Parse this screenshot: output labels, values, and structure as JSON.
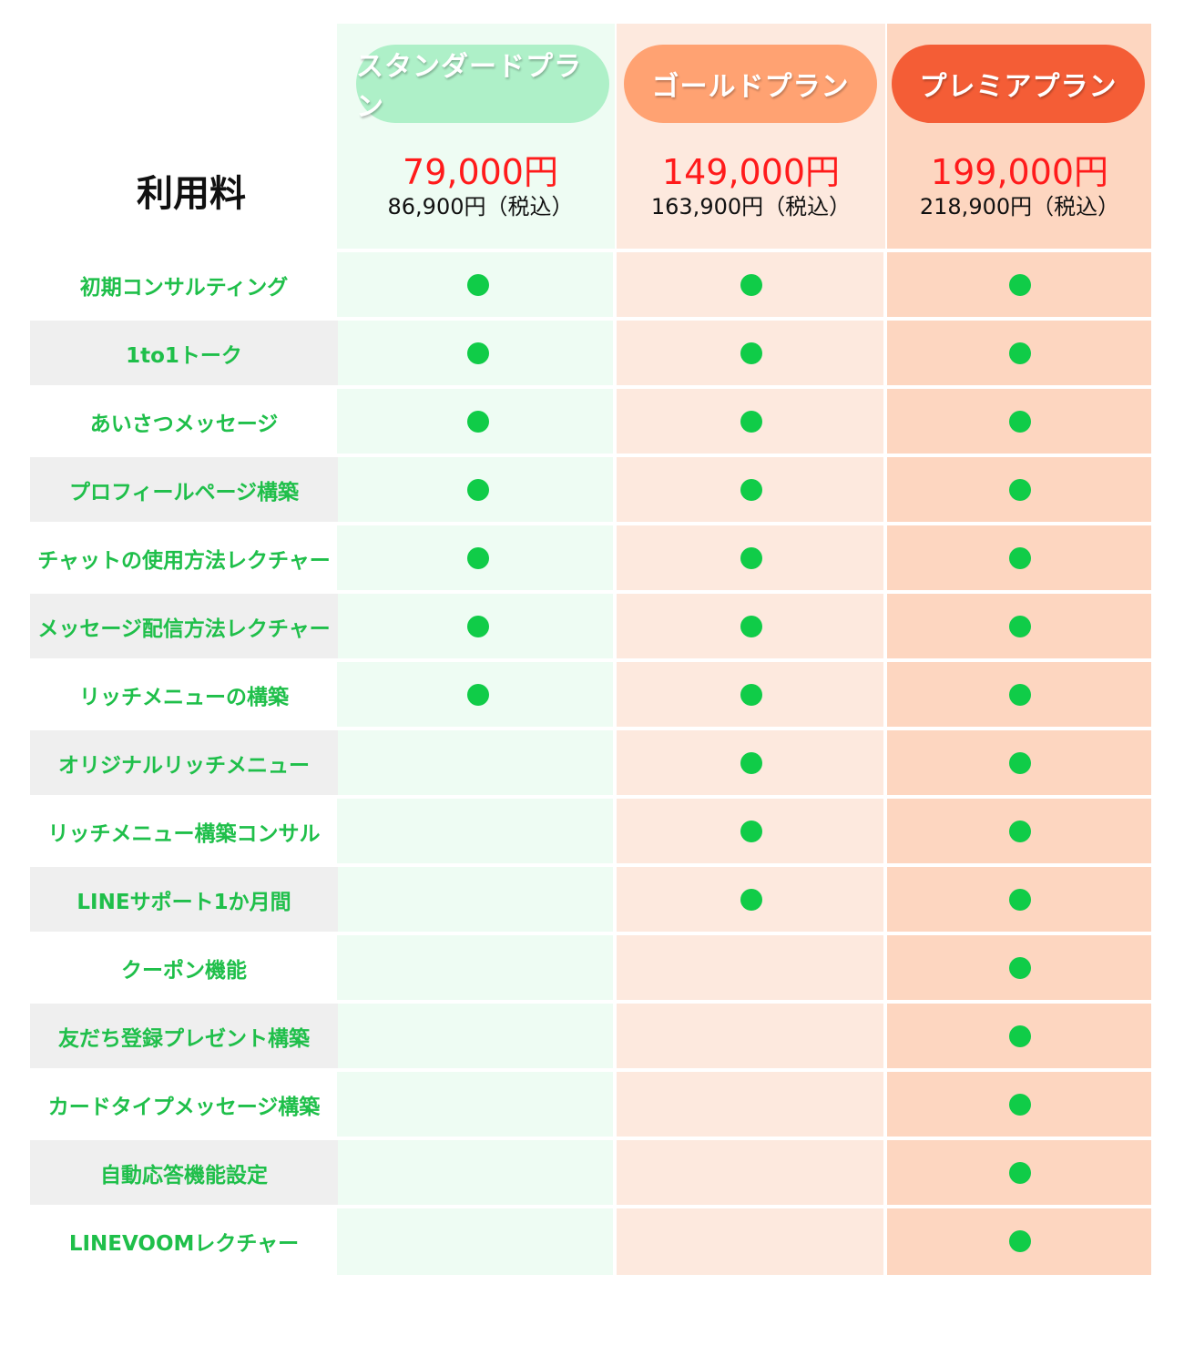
{
  "fee_label": "利用料",
  "plans": [
    {
      "name": "スタンダードプラン",
      "price": "79,000円",
      "price_tax": "86,900円（税込）",
      "color": "#aef0c8"
    },
    {
      "name": "ゴールドプラン",
      "price": "149,000円",
      "price_tax": "163,900円（税込）",
      "color": "#ffa272"
    },
    {
      "name": "プレミアプラン",
      "price": "199,000円",
      "price_tax": "218,900円（税込）",
      "color": "#f45d36"
    }
  ],
  "features": [
    {
      "label": "初期コンサルティング",
      "included": [
        true,
        true,
        true
      ]
    },
    {
      "label": "1to1トーク",
      "included": [
        true,
        true,
        true
      ]
    },
    {
      "label": "あいさつメッセージ",
      "included": [
        true,
        true,
        true
      ]
    },
    {
      "label": "プロフィールページ構築",
      "included": [
        true,
        true,
        true
      ]
    },
    {
      "label": "チャットの使用方法レクチャー",
      "included": [
        true,
        true,
        true
      ]
    },
    {
      "label": "メッセージ配信方法レクチャー",
      "included": [
        true,
        true,
        true
      ]
    },
    {
      "label": "リッチメニューの構築",
      "included": [
        true,
        true,
        true
      ]
    },
    {
      "label": "オリジナルリッチメニュー",
      "included": [
        false,
        true,
        true
      ]
    },
    {
      "label": "リッチメニュー構築コンサル",
      "included": [
        false,
        true,
        true
      ]
    },
    {
      "label": "LINEサポート1か月間",
      "included": [
        false,
        true,
        true
      ]
    },
    {
      "label": "クーポン機能",
      "included": [
        false,
        false,
        true
      ]
    },
    {
      "label": "友だち登録プレゼント構築",
      "included": [
        false,
        false,
        true
      ]
    },
    {
      "label": "カードタイプメッセージ構築",
      "included": [
        false,
        false,
        true
      ]
    },
    {
      "label": "自動応答機能設定",
      "included": [
        false,
        false,
        true
      ]
    },
    {
      "label": "LINEVOOMレクチャー",
      "included": [
        false,
        false,
        true
      ]
    }
  ],
  "colors": {
    "feature_text": "#1fbf4a",
    "dot": "#10cc48",
    "price": "#ff1b1b"
  }
}
